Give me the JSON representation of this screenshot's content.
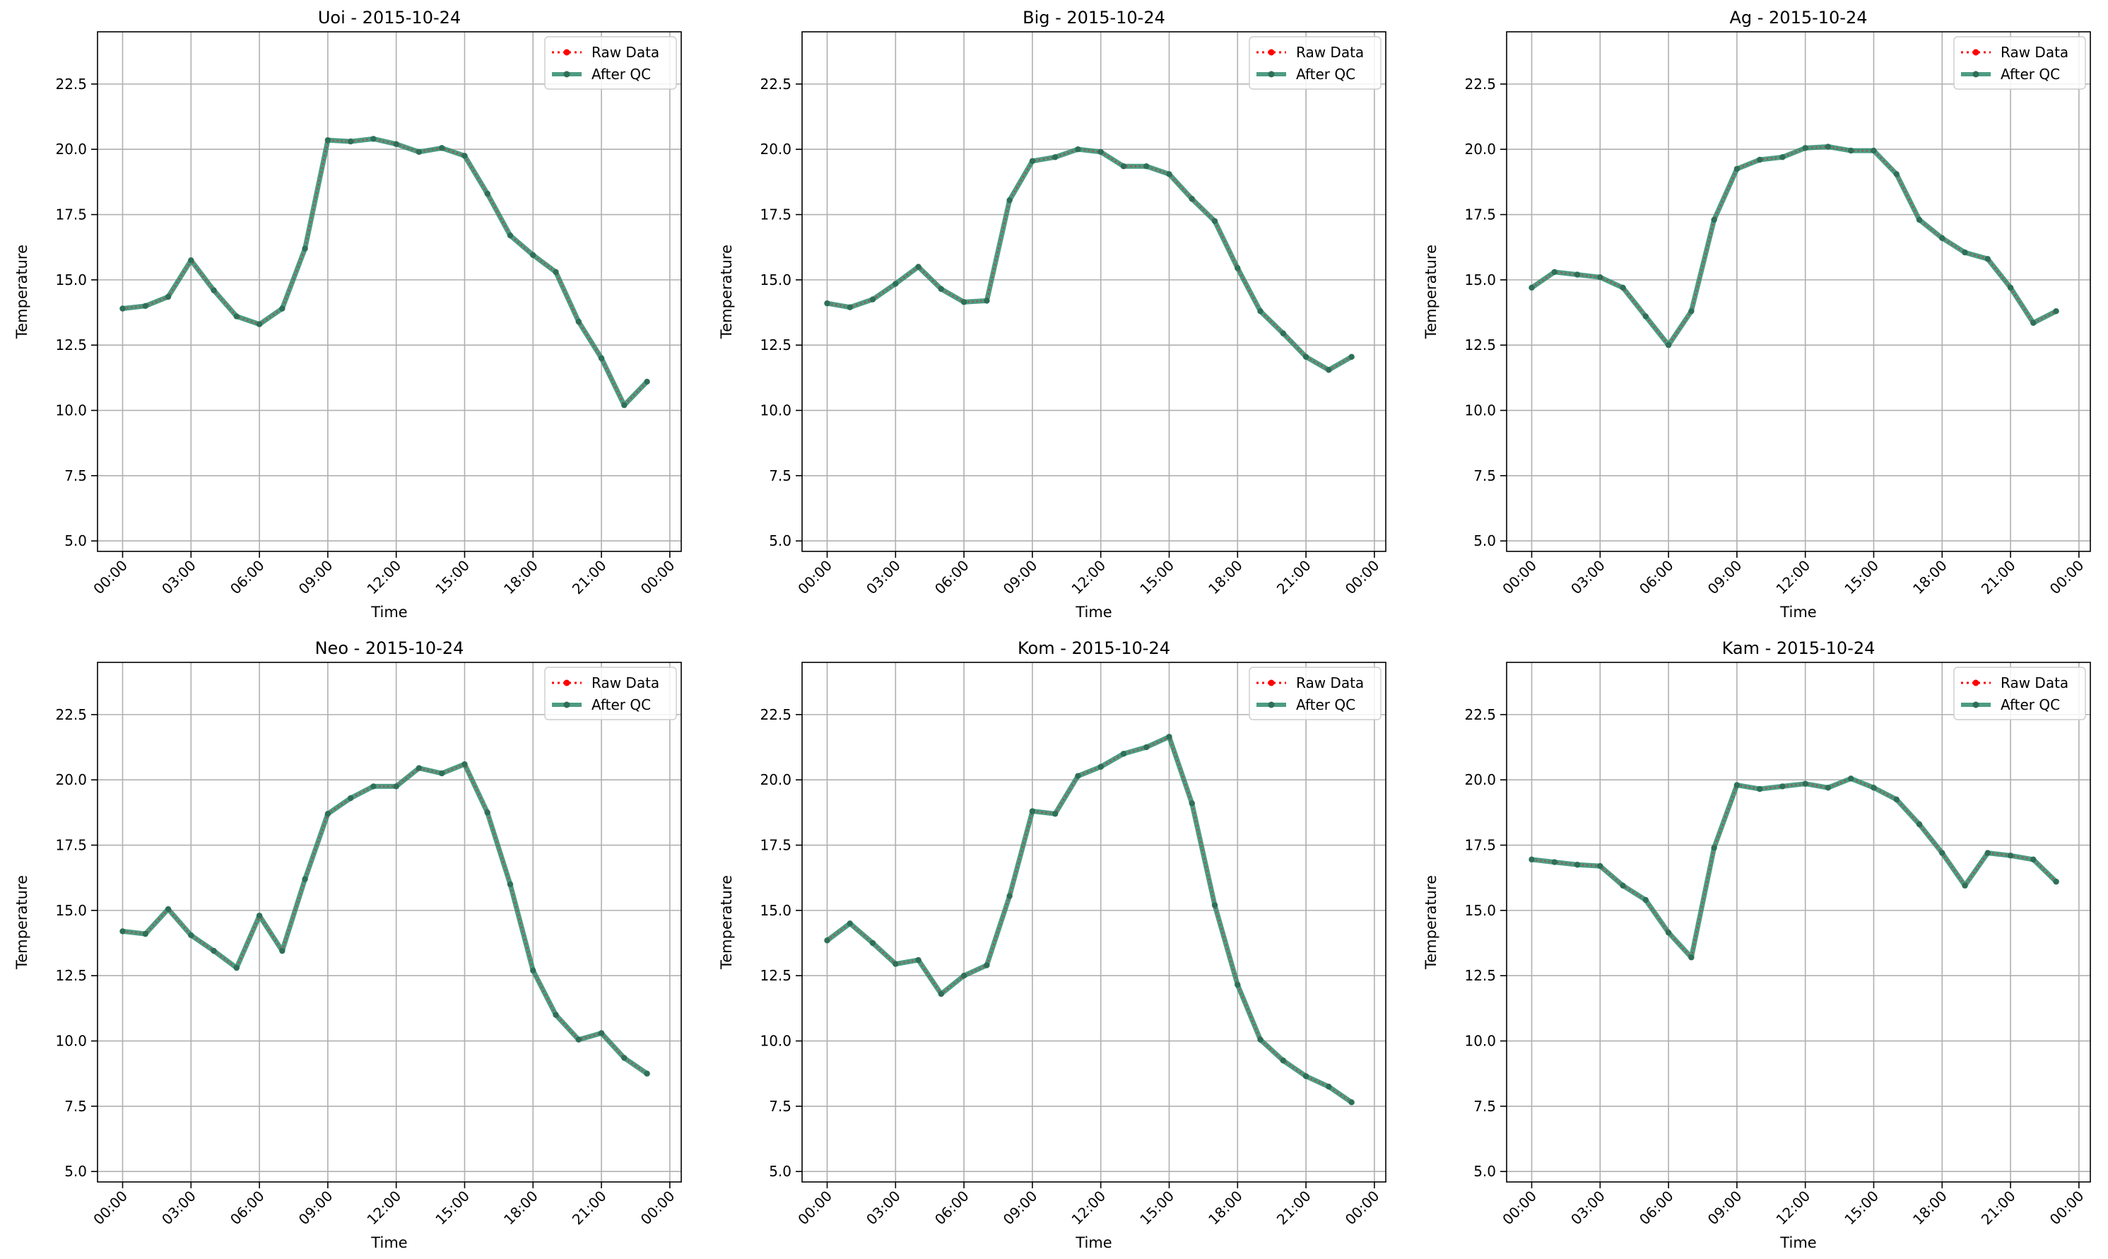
{
  "chart_data": [
    {
      "type": "line",
      "title": "Uoi - 2015-10-24",
      "xlabel": "Time",
      "ylabel": "Temperature",
      "x": [
        "00:00",
        "01:00",
        "02:00",
        "03:00",
        "04:00",
        "05:00",
        "06:00",
        "07:00",
        "08:00",
        "09:00",
        "10:00",
        "11:00",
        "12:00",
        "13:00",
        "14:00",
        "15:00",
        "16:00",
        "17:00",
        "18:00",
        "19:00",
        "20:00",
        "21:00",
        "22:00",
        "23:00"
      ],
      "xticks": [
        "00:00",
        "03:00",
        "06:00",
        "09:00",
        "12:00",
        "15:00",
        "18:00",
        "21:00",
        "00:00"
      ],
      "yticks": [
        "5.0",
        "7.5",
        "10.0",
        "12.5",
        "15.0",
        "17.5",
        "20.0",
        "22.5"
      ],
      "ylim": [
        4.6,
        24.5
      ],
      "series": [
        {
          "name": "Raw Data",
          "values": [
            13.9,
            14.0,
            14.35,
            15.75,
            14.6,
            13.6,
            13.3,
            13.9,
            16.2,
            20.35,
            20.3,
            20.4,
            20.2,
            19.9,
            20.05,
            19.75,
            18.3,
            16.7,
            15.95,
            15.3,
            13.4,
            12.0,
            10.2,
            11.1
          ]
        },
        {
          "name": "After QC",
          "values": [
            13.9,
            14.0,
            14.35,
            15.75,
            14.6,
            13.6,
            13.3,
            13.9,
            16.2,
            20.35,
            20.3,
            20.4,
            20.2,
            19.9,
            20.05,
            19.75,
            18.3,
            16.7,
            15.95,
            15.3,
            13.4,
            12.0,
            10.2,
            11.1
          ]
        }
      ],
      "grid": true,
      "legend": "top-right"
    },
    {
      "type": "line",
      "title": "Big - 2015-10-24",
      "xlabel": "Time",
      "ylabel": "Temperature",
      "x": [
        "00:00",
        "01:00",
        "02:00",
        "03:00",
        "04:00",
        "05:00",
        "06:00",
        "07:00",
        "08:00",
        "09:00",
        "10:00",
        "11:00",
        "12:00",
        "13:00",
        "14:00",
        "15:00",
        "16:00",
        "17:00",
        "18:00",
        "19:00",
        "20:00",
        "21:00",
        "22:00",
        "23:00"
      ],
      "xticks": [
        "00:00",
        "03:00",
        "06:00",
        "09:00",
        "12:00",
        "15:00",
        "18:00",
        "21:00",
        "00:00"
      ],
      "yticks": [
        "5.0",
        "7.5",
        "10.0",
        "12.5",
        "15.0",
        "17.5",
        "20.0",
        "22.5"
      ],
      "ylim": [
        4.6,
        24.5
      ],
      "series": [
        {
          "name": "Raw Data",
          "values": [
            14.1,
            13.95,
            14.25,
            14.85,
            15.5,
            14.65,
            14.15,
            14.2,
            18.05,
            19.55,
            19.7,
            20.0,
            19.9,
            19.35,
            19.35,
            19.05,
            18.1,
            17.25,
            15.45,
            13.8,
            12.95,
            12.05,
            11.55,
            12.05
          ]
        },
        {
          "name": "After QC",
          "values": [
            14.1,
            13.95,
            14.25,
            14.85,
            15.5,
            14.65,
            14.15,
            14.2,
            18.05,
            19.55,
            19.7,
            20.0,
            19.9,
            19.35,
            19.35,
            19.05,
            18.1,
            17.25,
            15.45,
            13.8,
            12.95,
            12.05,
            11.55,
            12.05
          ]
        }
      ],
      "grid": true,
      "legend": "top-right"
    },
    {
      "type": "line",
      "title": "Ag - 2015-10-24",
      "xlabel": "Time",
      "ylabel": "Temperature",
      "x": [
        "00:00",
        "01:00",
        "02:00",
        "03:00",
        "04:00",
        "05:00",
        "06:00",
        "07:00",
        "08:00",
        "09:00",
        "10:00",
        "11:00",
        "12:00",
        "13:00",
        "14:00",
        "15:00",
        "16:00",
        "17:00",
        "18:00",
        "19:00",
        "20:00",
        "21:00",
        "22:00",
        "23:00"
      ],
      "xticks": [
        "00:00",
        "03:00",
        "06:00",
        "09:00",
        "12:00",
        "15:00",
        "18:00",
        "21:00",
        "00:00"
      ],
      "yticks": [
        "5.0",
        "7.5",
        "10.0",
        "12.5",
        "15.0",
        "17.5",
        "20.0",
        "22.5"
      ],
      "ylim": [
        4.6,
        24.5
      ],
      "series": [
        {
          "name": "Raw Data",
          "values": [
            14.7,
            15.3,
            15.2,
            15.1,
            14.7,
            13.6,
            12.5,
            13.8,
            17.3,
            19.25,
            19.6,
            19.7,
            20.05,
            20.1,
            19.95,
            19.95,
            19.05,
            17.3,
            16.6,
            16.05,
            15.8,
            14.7,
            13.35,
            13.8
          ]
        },
        {
          "name": "After QC",
          "values": [
            14.7,
            15.3,
            15.2,
            15.1,
            14.7,
            13.6,
            12.5,
            13.8,
            17.3,
            19.25,
            19.6,
            19.7,
            20.05,
            20.1,
            19.95,
            19.95,
            19.05,
            17.3,
            16.6,
            16.05,
            15.8,
            14.7,
            13.35,
            13.8
          ]
        }
      ],
      "grid": true,
      "legend": "top-right"
    },
    {
      "type": "line",
      "title": "Neo - 2015-10-24",
      "xlabel": "Time",
      "ylabel": "Temperature",
      "x": [
        "00:00",
        "01:00",
        "02:00",
        "03:00",
        "04:00",
        "05:00",
        "06:00",
        "07:00",
        "08:00",
        "09:00",
        "10:00",
        "11:00",
        "12:00",
        "13:00",
        "14:00",
        "15:00",
        "16:00",
        "17:00",
        "18:00",
        "19:00",
        "20:00",
        "21:00",
        "22:00",
        "23:00"
      ],
      "xticks": [
        "00:00",
        "03:00",
        "06:00",
        "09:00",
        "12:00",
        "15:00",
        "18:00",
        "21:00",
        "00:00"
      ],
      "yticks": [
        "5.0",
        "7.5",
        "10.0",
        "12.5",
        "15.0",
        "17.5",
        "20.0",
        "22.5"
      ],
      "ylim": [
        4.6,
        24.5
      ],
      "series": [
        {
          "name": "Raw Data",
          "values": [
            14.2,
            14.1,
            15.05,
            14.05,
            13.45,
            12.8,
            14.8,
            13.45,
            16.2,
            18.7,
            19.3,
            19.75,
            19.75,
            20.45,
            20.25,
            20.6,
            18.75,
            16.0,
            12.7,
            11.0,
            10.05,
            10.3,
            9.35,
            8.75
          ]
        },
        {
          "name": "After QC",
          "values": [
            14.2,
            14.1,
            15.05,
            14.05,
            13.45,
            12.8,
            14.8,
            13.45,
            16.2,
            18.7,
            19.3,
            19.75,
            19.75,
            20.45,
            20.25,
            20.6,
            18.75,
            16.0,
            12.7,
            11.0,
            10.05,
            10.3,
            9.35,
            8.75
          ]
        }
      ],
      "grid": true,
      "legend": "top-right"
    },
    {
      "type": "line",
      "title": "Kom - 2015-10-24",
      "xlabel": "Time",
      "ylabel": "Temperature",
      "x": [
        "00:00",
        "01:00",
        "02:00",
        "03:00",
        "04:00",
        "05:00",
        "06:00",
        "07:00",
        "08:00",
        "09:00",
        "10:00",
        "11:00",
        "12:00",
        "13:00",
        "14:00",
        "15:00",
        "16:00",
        "17:00",
        "18:00",
        "19:00",
        "20:00",
        "21:00",
        "22:00",
        "23:00"
      ],
      "xticks": [
        "00:00",
        "03:00",
        "06:00",
        "09:00",
        "12:00",
        "15:00",
        "18:00",
        "21:00",
        "00:00"
      ],
      "yticks": [
        "5.0",
        "7.5",
        "10.0",
        "12.5",
        "15.0",
        "17.5",
        "20.0",
        "22.5"
      ],
      "ylim": [
        4.6,
        24.5
      ],
      "series": [
        {
          "name": "Raw Data",
          "values": [
            13.85,
            14.5,
            13.75,
            12.95,
            13.1,
            11.8,
            12.5,
            12.9,
            15.55,
            18.8,
            18.7,
            20.15,
            20.5,
            21.0,
            21.25,
            21.65,
            19.1,
            15.2,
            12.15,
            10.05,
            9.25,
            8.65,
            8.25,
            7.65
          ]
        },
        {
          "name": "After QC",
          "values": [
            13.85,
            14.5,
            13.75,
            12.95,
            13.1,
            11.8,
            12.5,
            12.9,
            15.55,
            18.8,
            18.7,
            20.15,
            20.5,
            21.0,
            21.25,
            21.65,
            19.1,
            15.2,
            12.15,
            10.05,
            9.25,
            8.65,
            8.25,
            7.65
          ]
        }
      ],
      "grid": true,
      "legend": "top-right"
    },
    {
      "type": "line",
      "title": "Kam - 2015-10-24",
      "xlabel": "Time",
      "ylabel": "Temperature",
      "x": [
        "00:00",
        "01:00",
        "02:00",
        "03:00",
        "04:00",
        "05:00",
        "06:00",
        "07:00",
        "08:00",
        "09:00",
        "10:00",
        "11:00",
        "12:00",
        "13:00",
        "14:00",
        "15:00",
        "16:00",
        "17:00",
        "18:00",
        "19:00",
        "20:00",
        "21:00",
        "22:00",
        "23:00"
      ],
      "xticks": [
        "00:00",
        "03:00",
        "06:00",
        "09:00",
        "12:00",
        "15:00",
        "18:00",
        "21:00",
        "00:00"
      ],
      "yticks": [
        "5.0",
        "7.5",
        "10.0",
        "12.5",
        "15.0",
        "17.5",
        "20.0",
        "22.5"
      ],
      "ylim": [
        4.6,
        24.5
      ],
      "series": [
        {
          "name": "Raw Data",
          "values": [
            16.95,
            16.85,
            16.75,
            16.7,
            15.95,
            15.4,
            14.15,
            13.2,
            17.4,
            19.8,
            19.65,
            19.75,
            19.85,
            19.7,
            20.05,
            19.7,
            19.25,
            18.3,
            17.2,
            15.95,
            17.2,
            17.1,
            16.95,
            16.1
          ]
        },
        {
          "name": "After QC",
          "values": [
            16.95,
            16.85,
            16.75,
            16.7,
            15.95,
            15.4,
            14.15,
            13.2,
            17.4,
            19.8,
            19.65,
            19.75,
            19.85,
            19.7,
            20.05,
            19.7,
            19.25,
            18.3,
            17.2,
            15.95,
            17.2,
            17.1,
            16.95,
            16.1
          ]
        }
      ],
      "grid": true,
      "legend": "top-right"
    }
  ],
  "colors": {
    "raw": "#ff0000",
    "qc_line": "#2e8b6e",
    "qc_marker": "#2f6f58",
    "grid": "#b0b0b0",
    "axis": "#000000"
  }
}
